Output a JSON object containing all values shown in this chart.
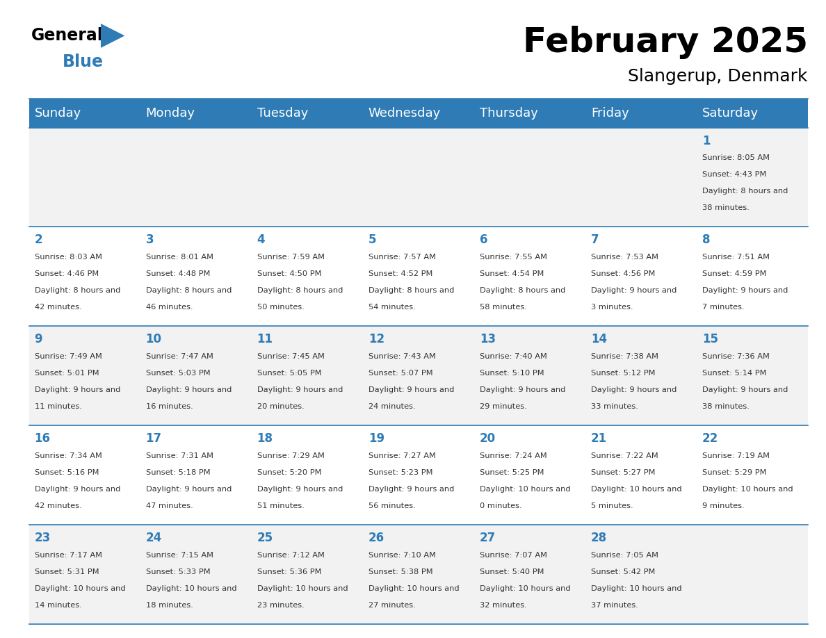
{
  "title": "February 2025",
  "subtitle": "Slangerup, Denmark",
  "header_color": "#2E7BB5",
  "header_text_color": "#FFFFFF",
  "background_color": "#FFFFFF",
  "alt_row_color": "#F2F2F2",
  "day_names": [
    "Sunday",
    "Monday",
    "Tuesday",
    "Wednesday",
    "Thursday",
    "Friday",
    "Saturday"
  ],
  "cell_text_color": "#333333",
  "day_num_color": "#2E7BB5",
  "grid_color": "#2E7BB5",
  "weeks": [
    [
      {
        "day": null,
        "sunrise": null,
        "sunset": null,
        "daylight": null
      },
      {
        "day": null,
        "sunrise": null,
        "sunset": null,
        "daylight": null
      },
      {
        "day": null,
        "sunrise": null,
        "sunset": null,
        "daylight": null
      },
      {
        "day": null,
        "sunrise": null,
        "sunset": null,
        "daylight": null
      },
      {
        "day": null,
        "sunrise": null,
        "sunset": null,
        "daylight": null
      },
      {
        "day": null,
        "sunrise": null,
        "sunset": null,
        "daylight": null
      },
      {
        "day": 1,
        "sunrise": "8:05 AM",
        "sunset": "4:43 PM",
        "daylight": "8 hours and 38 minutes."
      }
    ],
    [
      {
        "day": 2,
        "sunrise": "8:03 AM",
        "sunset": "4:46 PM",
        "daylight": "8 hours and 42 minutes."
      },
      {
        "day": 3,
        "sunrise": "8:01 AM",
        "sunset": "4:48 PM",
        "daylight": "8 hours and 46 minutes."
      },
      {
        "day": 4,
        "sunrise": "7:59 AM",
        "sunset": "4:50 PM",
        "daylight": "8 hours and 50 minutes."
      },
      {
        "day": 5,
        "sunrise": "7:57 AM",
        "sunset": "4:52 PM",
        "daylight": "8 hours and 54 minutes."
      },
      {
        "day": 6,
        "sunrise": "7:55 AM",
        "sunset": "4:54 PM",
        "daylight": "8 hours and 58 minutes."
      },
      {
        "day": 7,
        "sunrise": "7:53 AM",
        "sunset": "4:56 PM",
        "daylight": "9 hours and 3 minutes."
      },
      {
        "day": 8,
        "sunrise": "7:51 AM",
        "sunset": "4:59 PM",
        "daylight": "9 hours and 7 minutes."
      }
    ],
    [
      {
        "day": 9,
        "sunrise": "7:49 AM",
        "sunset": "5:01 PM",
        "daylight": "9 hours and 11 minutes."
      },
      {
        "day": 10,
        "sunrise": "7:47 AM",
        "sunset": "5:03 PM",
        "daylight": "9 hours and 16 minutes."
      },
      {
        "day": 11,
        "sunrise": "7:45 AM",
        "sunset": "5:05 PM",
        "daylight": "9 hours and 20 minutes."
      },
      {
        "day": 12,
        "sunrise": "7:43 AM",
        "sunset": "5:07 PM",
        "daylight": "9 hours and 24 minutes."
      },
      {
        "day": 13,
        "sunrise": "7:40 AM",
        "sunset": "5:10 PM",
        "daylight": "9 hours and 29 minutes."
      },
      {
        "day": 14,
        "sunrise": "7:38 AM",
        "sunset": "5:12 PM",
        "daylight": "9 hours and 33 minutes."
      },
      {
        "day": 15,
        "sunrise": "7:36 AM",
        "sunset": "5:14 PM",
        "daylight": "9 hours and 38 minutes."
      }
    ],
    [
      {
        "day": 16,
        "sunrise": "7:34 AM",
        "sunset": "5:16 PM",
        "daylight": "9 hours and 42 minutes."
      },
      {
        "day": 17,
        "sunrise": "7:31 AM",
        "sunset": "5:18 PM",
        "daylight": "9 hours and 47 minutes."
      },
      {
        "day": 18,
        "sunrise": "7:29 AM",
        "sunset": "5:20 PM",
        "daylight": "9 hours and 51 minutes."
      },
      {
        "day": 19,
        "sunrise": "7:27 AM",
        "sunset": "5:23 PM",
        "daylight": "9 hours and 56 minutes."
      },
      {
        "day": 20,
        "sunrise": "7:24 AM",
        "sunset": "5:25 PM",
        "daylight": "10 hours and 0 minutes."
      },
      {
        "day": 21,
        "sunrise": "7:22 AM",
        "sunset": "5:27 PM",
        "daylight": "10 hours and 5 minutes."
      },
      {
        "day": 22,
        "sunrise": "7:19 AM",
        "sunset": "5:29 PM",
        "daylight": "10 hours and 9 minutes."
      }
    ],
    [
      {
        "day": 23,
        "sunrise": "7:17 AM",
        "sunset": "5:31 PM",
        "daylight": "10 hours and 14 minutes."
      },
      {
        "day": 24,
        "sunrise": "7:15 AM",
        "sunset": "5:33 PM",
        "daylight": "10 hours and 18 minutes."
      },
      {
        "day": 25,
        "sunrise": "7:12 AM",
        "sunset": "5:36 PM",
        "daylight": "10 hours and 23 minutes."
      },
      {
        "day": 26,
        "sunrise": "7:10 AM",
        "sunset": "5:38 PM",
        "daylight": "10 hours and 27 minutes."
      },
      {
        "day": 27,
        "sunrise": "7:07 AM",
        "sunset": "5:40 PM",
        "daylight": "10 hours and 32 minutes."
      },
      {
        "day": 28,
        "sunrise": "7:05 AM",
        "sunset": "5:42 PM",
        "daylight": "10 hours and 37 minutes."
      },
      {
        "day": null,
        "sunrise": null,
        "sunset": null,
        "daylight": null
      }
    ]
  ]
}
